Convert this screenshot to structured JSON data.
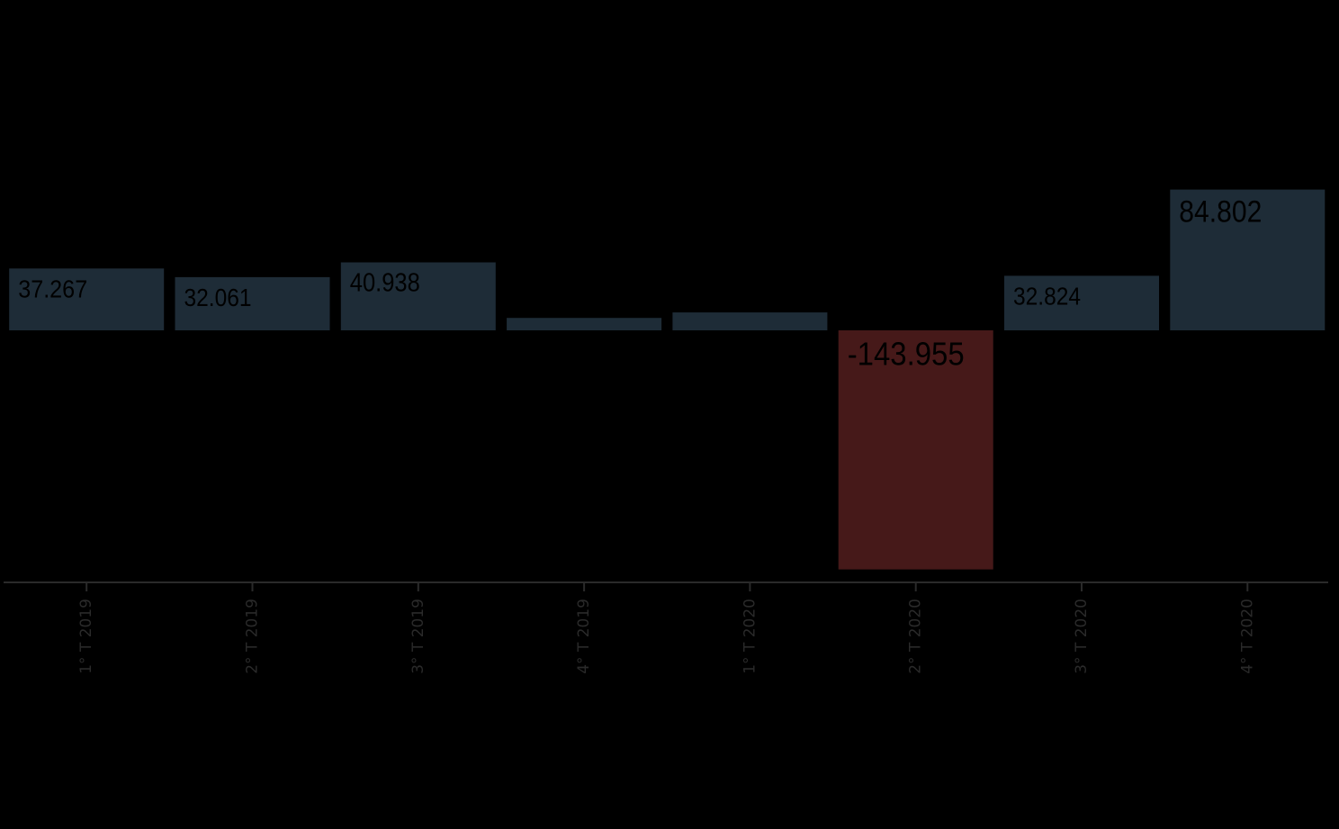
{
  "chart_data": {
    "type": "bar",
    "title": "",
    "xlabel": "",
    "ylabel": "",
    "categories": [
      "1° T 2019",
      "2° T 2019",
      "3° T 2019",
      "4° T 2019",
      "1° T 2020",
      "2° T 2020",
      "3° T 2020",
      "4° T 2020"
    ],
    "values": [
      37267,
      32061,
      40938,
      7500,
      10800,
      -143955,
      32824,
      84802
    ],
    "data_labels": [
      "37.267",
      "32.061",
      "40.938",
      "",
      "",
      "-143.955",
      "32.824",
      "84.802"
    ],
    "ylim": [
      -152000,
      200000
    ],
    "grid": false,
    "legend": "none"
  },
  "colors": {
    "background": "#000000",
    "positive_bar": "#1e2c37",
    "negative_bar": "#461919",
    "axis_line": "#2a2a2a",
    "tick_label": "#2a2a2a",
    "data_label": "#000000"
  }
}
